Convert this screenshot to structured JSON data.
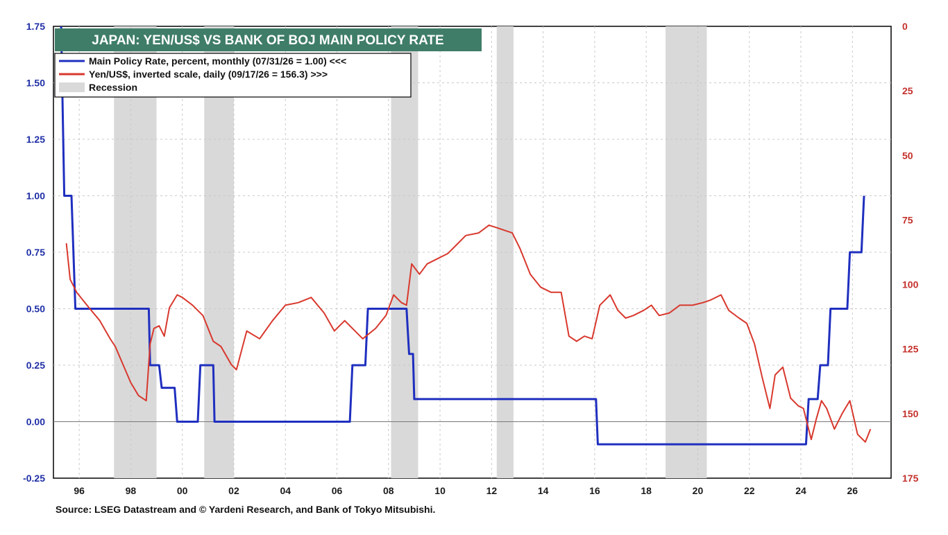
{
  "chart_data": {
    "type": "line",
    "title": "JAPAN: YEN/US$ VS BANK OF BOJ MAIN POLICY RATE",
    "legend": {
      "placement": "top-left",
      "entries": [
        {
          "label": "Main Policy Rate, percent, monthly (07/31/26 = 1.00) <<<",
          "color": "#1f2fbf",
          "kind": "line"
        },
        {
          "label": "Yen/US$, inverted scale, daily (09/17/26 = 156.3) >>>",
          "color": "#d8382d",
          "kind": "line"
        },
        {
          "label": "Recession",
          "color": "#d9d9d9",
          "kind": "band"
        }
      ]
    },
    "x_axis": {
      "range": [
        1995.0,
        2027.5
      ],
      "tick_labels": [
        "96",
        "98",
        "00",
        "02",
        "04",
        "06",
        "08",
        "10",
        "12",
        "14",
        "16",
        "18",
        "20",
        "22",
        "24",
        "26"
      ],
      "tick_values": [
        1996,
        1998,
        2000,
        2002,
        2004,
        2006,
        2008,
        2010,
        2012,
        2014,
        2016,
        2018,
        2020,
        2022,
        2024,
        2026
      ]
    },
    "y_left": {
      "label": "",
      "range": [
        -0.25,
        1.75
      ],
      "ticks": [
        "1.75",
        "1.50",
        "1.25",
        "1.00",
        "0.75",
        "0.50",
        "0.25",
        "0.00",
        "-0.25"
      ],
      "tick_values": [
        1.75,
        1.5,
        1.25,
        1.0,
        0.75,
        0.5,
        0.25,
        0.0,
        -0.25
      ],
      "color": "#1f2fa6"
    },
    "y_right": {
      "label": "",
      "range": [
        0,
        175
      ],
      "inverted": true,
      "ticks": [
        "0",
        "25",
        "50",
        "75",
        "100",
        "125",
        "150",
        "175"
      ],
      "tick_values": [
        0,
        25,
        50,
        75,
        100,
        125,
        150,
        175
      ],
      "color": "#c4302b"
    },
    "grid": true,
    "recessions": [
      [
        1997.35,
        1999.0
      ],
      [
        2000.85,
        2002.0
      ],
      [
        2008.1,
        2009.15
      ],
      [
        2012.2,
        2012.85
      ],
      [
        2018.75,
        2020.35
      ]
    ],
    "series": [
      {
        "name": "Main Policy Rate, percent, monthly",
        "axis": "left",
        "step": true,
        "x": [
          1995.3,
          1995.42,
          1995.7,
          1995.85,
          1998.7,
          1998.75,
          1999.1,
          1999.2,
          1999.7,
          1999.8,
          2000.6,
          2000.7,
          2001.2,
          2001.25,
          2006.5,
          2006.6,
          2007.1,
          2007.2,
          2008.7,
          2008.8,
          2008.95,
          2009.0,
          2016.05,
          2016.12,
          2024.2,
          2024.3,
          2024.65,
          2024.75,
          2025.05,
          2025.15,
          2025.8,
          2025.9,
          2026.35,
          2026.45
        ],
        "y": [
          1.75,
          1.0,
          1.0,
          0.5,
          0.5,
          0.25,
          0.25,
          0.15,
          0.15,
          0.0,
          0.0,
          0.25,
          0.25,
          0.0,
          0.0,
          0.25,
          0.25,
          0.5,
          0.5,
          0.3,
          0.3,
          0.1,
          0.1,
          -0.1,
          -0.1,
          0.1,
          0.1,
          0.25,
          0.25,
          0.5,
          0.5,
          0.75,
          0.75,
          1.0
        ]
      },
      {
        "name": "Yen/US$, inverted scale, daily",
        "axis": "right",
        "x": [
          1995.5,
          1995.65,
          1995.9,
          1996.3,
          1996.8,
          1997.2,
          1997.4,
          1997.7,
          1998.0,
          1998.3,
          1998.6,
          1998.75,
          1998.9,
          1999.1,
          1999.3,
          1999.5,
          1999.8,
          2000.0,
          2000.4,
          2000.8,
          2001.2,
          2001.5,
          2001.9,
          2002.1,
          2002.5,
          2003.0,
          2003.5,
          2004.0,
          2004.5,
          2005.0,
          2005.5,
          2005.9,
          2006.3,
          2006.7,
          2007.0,
          2007.5,
          2007.9,
          2008.2,
          2008.5,
          2008.7,
          2008.9,
          2009.2,
          2009.5,
          2009.9,
          2010.3,
          2010.7,
          2011.0,
          2011.5,
          2011.9,
          2012.2,
          2012.5,
          2012.8,
          2013.1,
          2013.5,
          2013.9,
          2014.3,
          2014.7,
          2015.0,
          2015.3,
          2015.6,
          2015.9,
          2016.2,
          2016.6,
          2016.9,
          2017.2,
          2017.5,
          2017.9,
          2018.2,
          2018.5,
          2018.9,
          2019.3,
          2019.8,
          2020.2,
          2020.5,
          2020.9,
          2021.2,
          2021.6,
          2021.9,
          2022.2,
          2022.5,
          2022.8,
          2023.0,
          2023.3,
          2023.6,
          2023.9,
          2024.1,
          2024.4,
          2024.6,
          2024.8,
          2025.0,
          2025.3,
          2025.6,
          2025.9,
          2026.2,
          2026.5,
          2026.7
        ],
        "y": [
          84,
          98,
          103,
          108,
          114,
          121,
          124,
          131,
          138,
          143,
          145,
          123,
          117,
          116,
          120,
          109,
          104,
          105,
          108,
          112,
          122,
          124,
          131,
          133,
          118,
          121,
          114,
          108,
          107,
          105,
          111,
          118,
          114,
          118,
          121,
          117,
          112,
          104,
          107,
          108,
          92,
          96,
          92,
          90,
          88,
          84,
          81,
          80,
          77,
          78,
          79,
          80,
          86,
          96,
          101,
          103,
          103,
          120,
          122,
          120,
          121,
          108,
          104,
          110,
          113,
          112,
          110,
          108,
          112,
          111,
          108,
          108,
          107,
          106,
          104,
          110,
          113,
          115,
          123,
          136,
          148,
          135,
          132,
          144,
          147,
          148,
          160,
          152,
          145,
          148,
          156,
          150,
          145,
          158,
          161,
          156
        ]
      }
    ],
    "annotations": []
  },
  "source": "Source: LSEG Datastream and © Yardeni Research, and Bank of Tokyo Mitsubishi."
}
